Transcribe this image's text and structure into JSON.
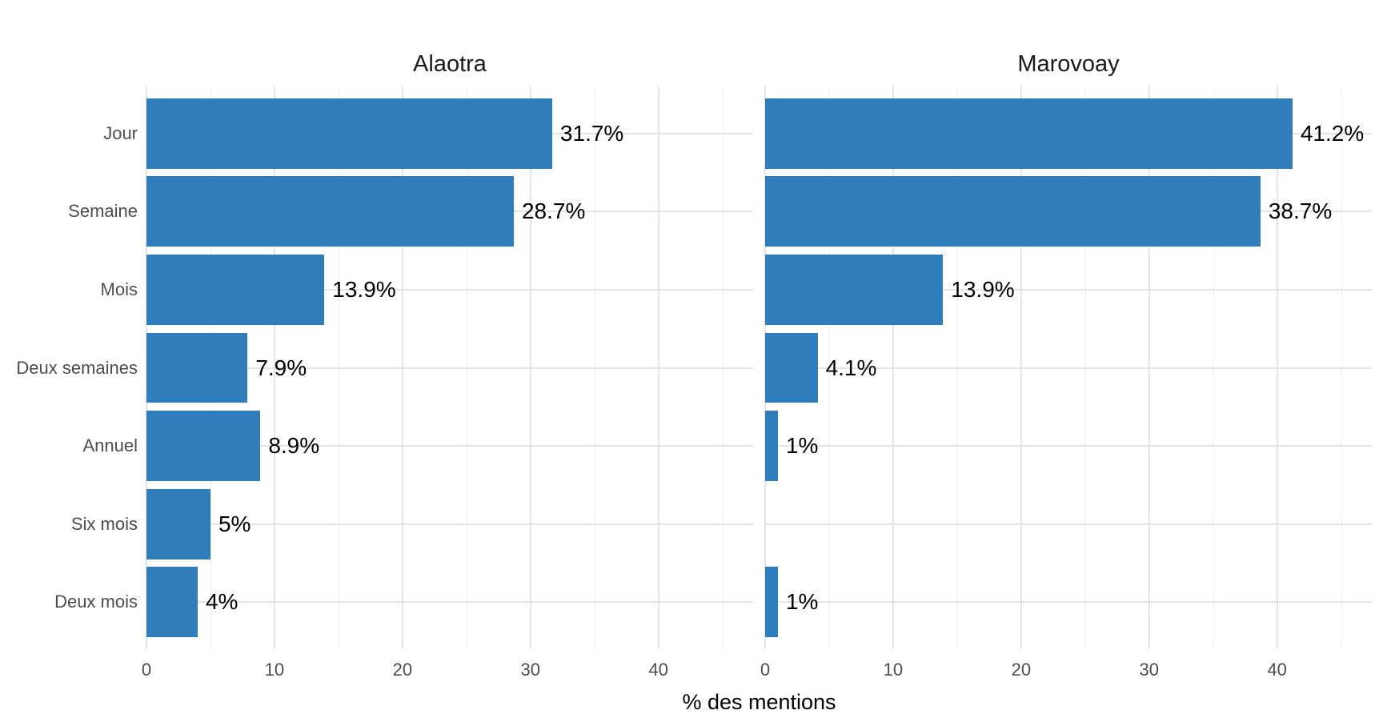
{
  "chart_data": {
    "type": "bar",
    "orientation": "horizontal",
    "title": "",
    "xlabel": "% des mentions",
    "ylabel": "",
    "categories": [
      "Jour",
      "Semaine",
      "Mois",
      "Deux semaines",
      "Annuel",
      "Six mois",
      "Deux mois"
    ],
    "series": [
      {
        "name": "Alaotra",
        "values": [
          31.7,
          28.7,
          13.9,
          7.9,
          8.9,
          5,
          4
        ],
        "labels": [
          "31.7%",
          "28.7%",
          "13.9%",
          "7.9%",
          "8.9%",
          "5%",
          "4%"
        ]
      },
      {
        "name": "Marovoay",
        "values": [
          41.2,
          38.7,
          13.9,
          4.1,
          1,
          null,
          1
        ],
        "labels": [
          "41.2%",
          "38.7%",
          "13.9%",
          "4.1%",
          "1%",
          "",
          "1%"
        ]
      }
    ],
    "x_ticks": [
      0,
      10,
      20,
      30,
      40
    ],
    "x_minor_ticks": [
      5,
      15,
      25,
      35,
      45
    ],
    "xlim": [
      0,
      47.4
    ],
    "grid": true,
    "legend": false,
    "bar_color": "#2f7dbb",
    "grid_major_color": "#e4e4e4",
    "grid_minor_color": "#f0f0f0",
    "axis_text_color": "#4d4d4d",
    "title_text_color": "#1a1a1a",
    "value_text_color": "#000000"
  }
}
